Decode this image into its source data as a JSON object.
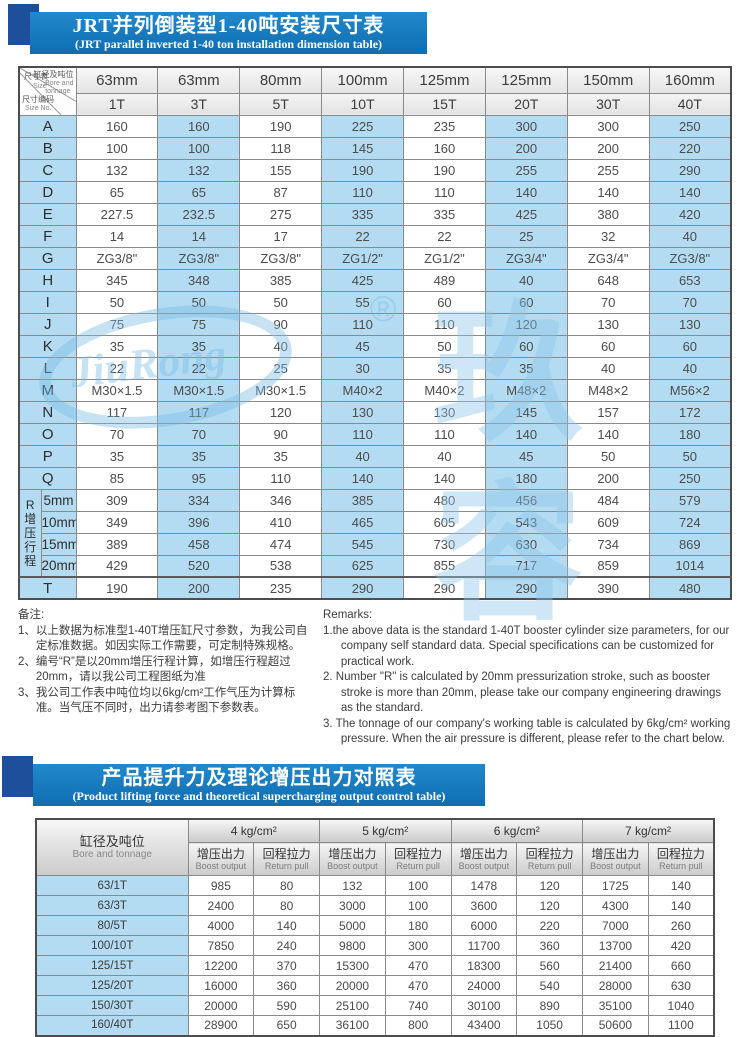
{
  "banner1": {
    "title": "JRT并列倒装型1-40吨安装尺寸表",
    "subtitle": "(JRT parallel inverted 1-40 ton installation dimension table)"
  },
  "banner2": {
    "title": "产品提升力及理论增压出力对照表",
    "subtitle": "(Product lifting force and theoretical supercharging output control table)"
  },
  "colors": {
    "ribbon_blue": "#1579bf",
    "corner_navy": "#1d4f9b",
    "cell_blue": "#b3dcf3"
  },
  "watermark": {
    "logo": "JiuRong",
    "reg": "®",
    "cn": "玖容"
  },
  "table1": {
    "corner": {
      "size_cn": "尺寸表",
      "size_en": "Size",
      "bore_cn": "缸径及吨位",
      "bore_en": "Bore and",
      "tonnage_en": "tonnage",
      "code_cn": "尺寸编码",
      "code_en": "Size No."
    },
    "bores": [
      "63mm",
      "63mm",
      "80mm",
      "100mm",
      "125mm",
      "125mm",
      "150mm",
      "160mm"
    ],
    "tonnages": [
      "1T",
      "3T",
      "5T",
      "10T",
      "15T",
      "20T",
      "30T",
      "40T"
    ],
    "rows": [
      {
        "label": "A",
        "values": [
          "160",
          "160",
          "190",
          "225",
          "235",
          "300",
          "300",
          "250"
        ]
      },
      {
        "label": "B",
        "values": [
          "100",
          "100",
          "118",
          "145",
          "160",
          "200",
          "200",
          "220"
        ]
      },
      {
        "label": "C",
        "values": [
          "132",
          "132",
          "155",
          "190",
          "190",
          "255",
          "255",
          "290"
        ]
      },
      {
        "label": "D",
        "values": [
          "65",
          "65",
          "87",
          "110",
          "110",
          "140",
          "140",
          "140"
        ]
      },
      {
        "label": "E",
        "values": [
          "227.5",
          "232.5",
          "275",
          "335",
          "335",
          "425",
          "380",
          "420"
        ]
      },
      {
        "label": "F",
        "values": [
          "14",
          "14",
          "17",
          "22",
          "22",
          "25",
          "32",
          "40"
        ]
      },
      {
        "label": "G",
        "values": [
          "ZG3/8\"",
          "ZG3/8\"",
          "ZG3/8\"",
          "ZG1/2\"",
          "ZG1/2\"",
          "ZG3/4\"",
          "ZG3/4\"",
          "ZG3/8\""
        ]
      },
      {
        "label": "H",
        "values": [
          "345",
          "348",
          "385",
          "425",
          "489",
          "40",
          "648",
          "653"
        ]
      },
      {
        "label": "I",
        "values": [
          "50",
          "50",
          "50",
          "55",
          "60",
          "60",
          "70",
          "70"
        ]
      },
      {
        "label": "J",
        "values": [
          "75",
          "75",
          "90",
          "110",
          "110",
          "120",
          "130",
          "130"
        ]
      },
      {
        "label": "K",
        "values": [
          "35",
          "35",
          "40",
          "45",
          "50",
          "60",
          "60",
          "60"
        ]
      },
      {
        "label": "L",
        "values": [
          "22",
          "22",
          "25",
          "30",
          "35",
          "35",
          "40",
          "40"
        ]
      },
      {
        "label": "M",
        "values": [
          "M30×1.5",
          "M30×1.5",
          "M30×1.5",
          "M40×2",
          "M40×2",
          "M48×2",
          "M48×2",
          "M56×2"
        ]
      },
      {
        "label": "N",
        "values": [
          "117",
          "117",
          "120",
          "130",
          "130",
          "145",
          "157",
          "172"
        ]
      },
      {
        "label": "O",
        "values": [
          "70",
          "70",
          "90",
          "110",
          "110",
          "140",
          "140",
          "180"
        ]
      },
      {
        "label": "P",
        "values": [
          "35",
          "35",
          "35",
          "40",
          "40",
          "45",
          "50",
          "50"
        ]
      },
      {
        "label": "Q",
        "values": [
          "85",
          "95",
          "110",
          "140",
          "140",
          "180",
          "200",
          "250"
        ]
      }
    ],
    "r_group": {
      "vertical_label": "R增压行程",
      "rows": [
        {
          "label": "5mm",
          "values": [
            "309",
            "334",
            "346",
            "385",
            "480",
            "456",
            "484",
            "579"
          ]
        },
        {
          "label": "10mm",
          "values": [
            "349",
            "396",
            "410",
            "465",
            "605",
            "543",
            "609",
            "724"
          ]
        },
        {
          "label": "15mm",
          "values": [
            "389",
            "458",
            "474",
            "545",
            "730",
            "630",
            "734",
            "869"
          ]
        },
        {
          "label": "20mm",
          "values": [
            "429",
            "520",
            "538",
            "625",
            "855",
            "717",
            "859",
            "1014"
          ]
        }
      ]
    },
    "t_row": {
      "label": "T",
      "values": [
        "190",
        "200",
        "235",
        "290",
        "290",
        "290",
        "390",
        "480"
      ]
    }
  },
  "notes_cn": {
    "title": "备注:",
    "items": [
      "1、以上数据为标准型1-40T增压缸尺寸参数，为我公司自定标准数据。如因实际工作需要，可定制特殊规格。",
      "2、编号“R”是以20mm增压行程计算，如增压行程超过20mm，请以我公司工程图纸为准",
      "3、我公司工作表中吨位均以6kg/cm²工作气压为计算标准。当气压不同时，出力请参考图下参数表。"
    ]
  },
  "notes_en": {
    "title": "Remarks:",
    "items": [
      "1.the above data is the standard 1-40T booster cylinder size parameters, for our company self standard data. Special specifications can be customized for practical work.",
      "2. Number \"R\" is calculated by 20mm pressurization stroke, such as booster stroke is more than 20mm, please take our company engineering drawings as the standard.",
      "3. The tonnage of our company's working table is calculated by 6kg/cm² working pressure. When the air pressure is different, please refer to the chart below."
    ]
  },
  "table2": {
    "corner_cn": "缸径及吨位",
    "corner_en": "Bore and tonnage",
    "pressures": [
      "4 kg/cm²",
      "5 kg/cm²",
      "6 kg/cm²",
      "7 kg/cm²"
    ],
    "sub_cn": [
      "增压出力",
      "回程拉力"
    ],
    "sub_en": [
      "Boost output",
      "Return pull"
    ],
    "rows": [
      {
        "label": "63/1T",
        "values": [
          "985",
          "80",
          "132",
          "100",
          "1478",
          "120",
          "1725",
          "140"
        ]
      },
      {
        "label": "63/3T",
        "values": [
          "2400",
          "80",
          "3000",
          "100",
          "3600",
          "120",
          "4300",
          "140"
        ]
      },
      {
        "label": "80/5T",
        "values": [
          "4000",
          "140",
          "5000",
          "180",
          "6000",
          "220",
          "7000",
          "260"
        ]
      },
      {
        "label": "100/10T",
        "values": [
          "7850",
          "240",
          "9800",
          "300",
          "11700",
          "360",
          "13700",
          "420"
        ]
      },
      {
        "label": "125/15T",
        "values": [
          "12200",
          "370",
          "15300",
          "470",
          "18300",
          "560",
          "21400",
          "660"
        ]
      },
      {
        "label": "125/20T",
        "values": [
          "16000",
          "360",
          "20000",
          "470",
          "24000",
          "540",
          "28000",
          "630"
        ]
      },
      {
        "label": "150/30T",
        "values": [
          "20000",
          "590",
          "25100",
          "740",
          "30100",
          "890",
          "35100",
          "1040"
        ]
      },
      {
        "label": "160/40T",
        "values": [
          "28900",
          "650",
          "36100",
          "800",
          "43400",
          "1050",
          "50600",
          "1100"
        ]
      }
    ]
  }
}
